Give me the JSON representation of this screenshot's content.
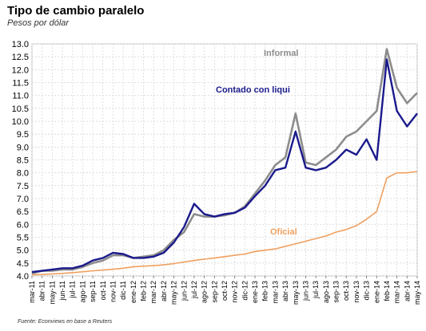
{
  "header": {
    "title": "Tipo de cambio paralelo",
    "subtitle": "Pesos por dólar",
    "source": "Fuente: Econviews en base a Reuters"
  },
  "colors": {
    "informal": "#8c8c8c",
    "contado": "#1a1a8c",
    "oficial": "#f0a060",
    "grid": "#d8d8d8"
  },
  "chart_data": {
    "type": "line",
    "title": "Tipo de cambio paralelo",
    "subtitle": "Pesos por dólar",
    "xlabel": "",
    "ylabel": "",
    "ylim": [
      4.0,
      13.0
    ],
    "yticks": [
      "4.0",
      "4.5",
      "5.0",
      "5.5",
      "6.0",
      "6.5",
      "7.0",
      "7.5",
      "8.0",
      "8.5",
      "9.0",
      "9.5",
      "10.0",
      "10.5",
      "11.0",
      "11.5",
      "12.0",
      "12.5",
      "13.0"
    ],
    "x": [
      "mar-11",
      "abr-11",
      "may-11",
      "jun-11",
      "jul-11",
      "ago-11",
      "sep-11",
      "oct-11",
      "nov-11",
      "dic-11",
      "ene-12",
      "feb-12",
      "mar-12",
      "abr-12",
      "may-12",
      "jun-12",
      "jul-12",
      "ago-12",
      "sep-12",
      "oct-12",
      "nov-12",
      "dic-12",
      "ene-13",
      "feb-13",
      "mar-13",
      "abr-13",
      "may-13",
      "jun-13",
      "jul-13",
      "ago-13",
      "sep-13",
      "oct-13",
      "nov-13",
      "dic-13",
      "ene-14",
      "feb-14",
      "mar-14",
      "abr-14",
      "may-14"
    ],
    "grid": true,
    "series": [
      {
        "name": "Informal",
        "label_position": "top-right",
        "values": [
          4.1,
          4.2,
          4.2,
          4.25,
          4.25,
          4.35,
          4.5,
          4.6,
          4.8,
          4.8,
          4.7,
          4.75,
          4.8,
          5.0,
          5.4,
          5.7,
          6.4,
          6.3,
          6.3,
          6.35,
          6.45,
          6.7,
          7.2,
          7.7,
          8.3,
          8.6,
          10.3,
          8.4,
          8.3,
          8.6,
          8.9,
          9.4,
          9.6,
          10.0,
          10.4,
          12.8,
          11.3,
          10.7,
          11.1
        ]
      },
      {
        "name": "Contado con liqui",
        "label_position": "upper-center",
        "values": [
          4.15,
          4.2,
          4.25,
          4.3,
          4.3,
          4.4,
          4.6,
          4.7,
          4.9,
          4.85,
          4.7,
          4.7,
          4.75,
          4.9,
          5.3,
          5.9,
          6.8,
          6.4,
          6.3,
          6.4,
          6.45,
          6.65,
          7.1,
          7.5,
          8.1,
          8.2,
          9.6,
          8.2,
          8.1,
          8.2,
          8.5,
          8.9,
          8.7,
          9.3,
          8.5,
          12.4,
          10.4,
          9.8,
          10.3
        ]
      },
      {
        "name": "Oficial",
        "label_position": "lower-center",
        "values": [
          4.05,
          4.06,
          4.08,
          4.1,
          4.13,
          4.16,
          4.2,
          4.23,
          4.26,
          4.3,
          4.36,
          4.38,
          4.4,
          4.43,
          4.48,
          4.54,
          4.6,
          4.65,
          4.7,
          4.75,
          4.8,
          4.85,
          4.95,
          5.0,
          5.05,
          5.15,
          5.25,
          5.35,
          5.45,
          5.55,
          5.7,
          5.8,
          5.95,
          6.2,
          6.5,
          7.8,
          8.0,
          8.0,
          8.05
        ]
      }
    ]
  }
}
